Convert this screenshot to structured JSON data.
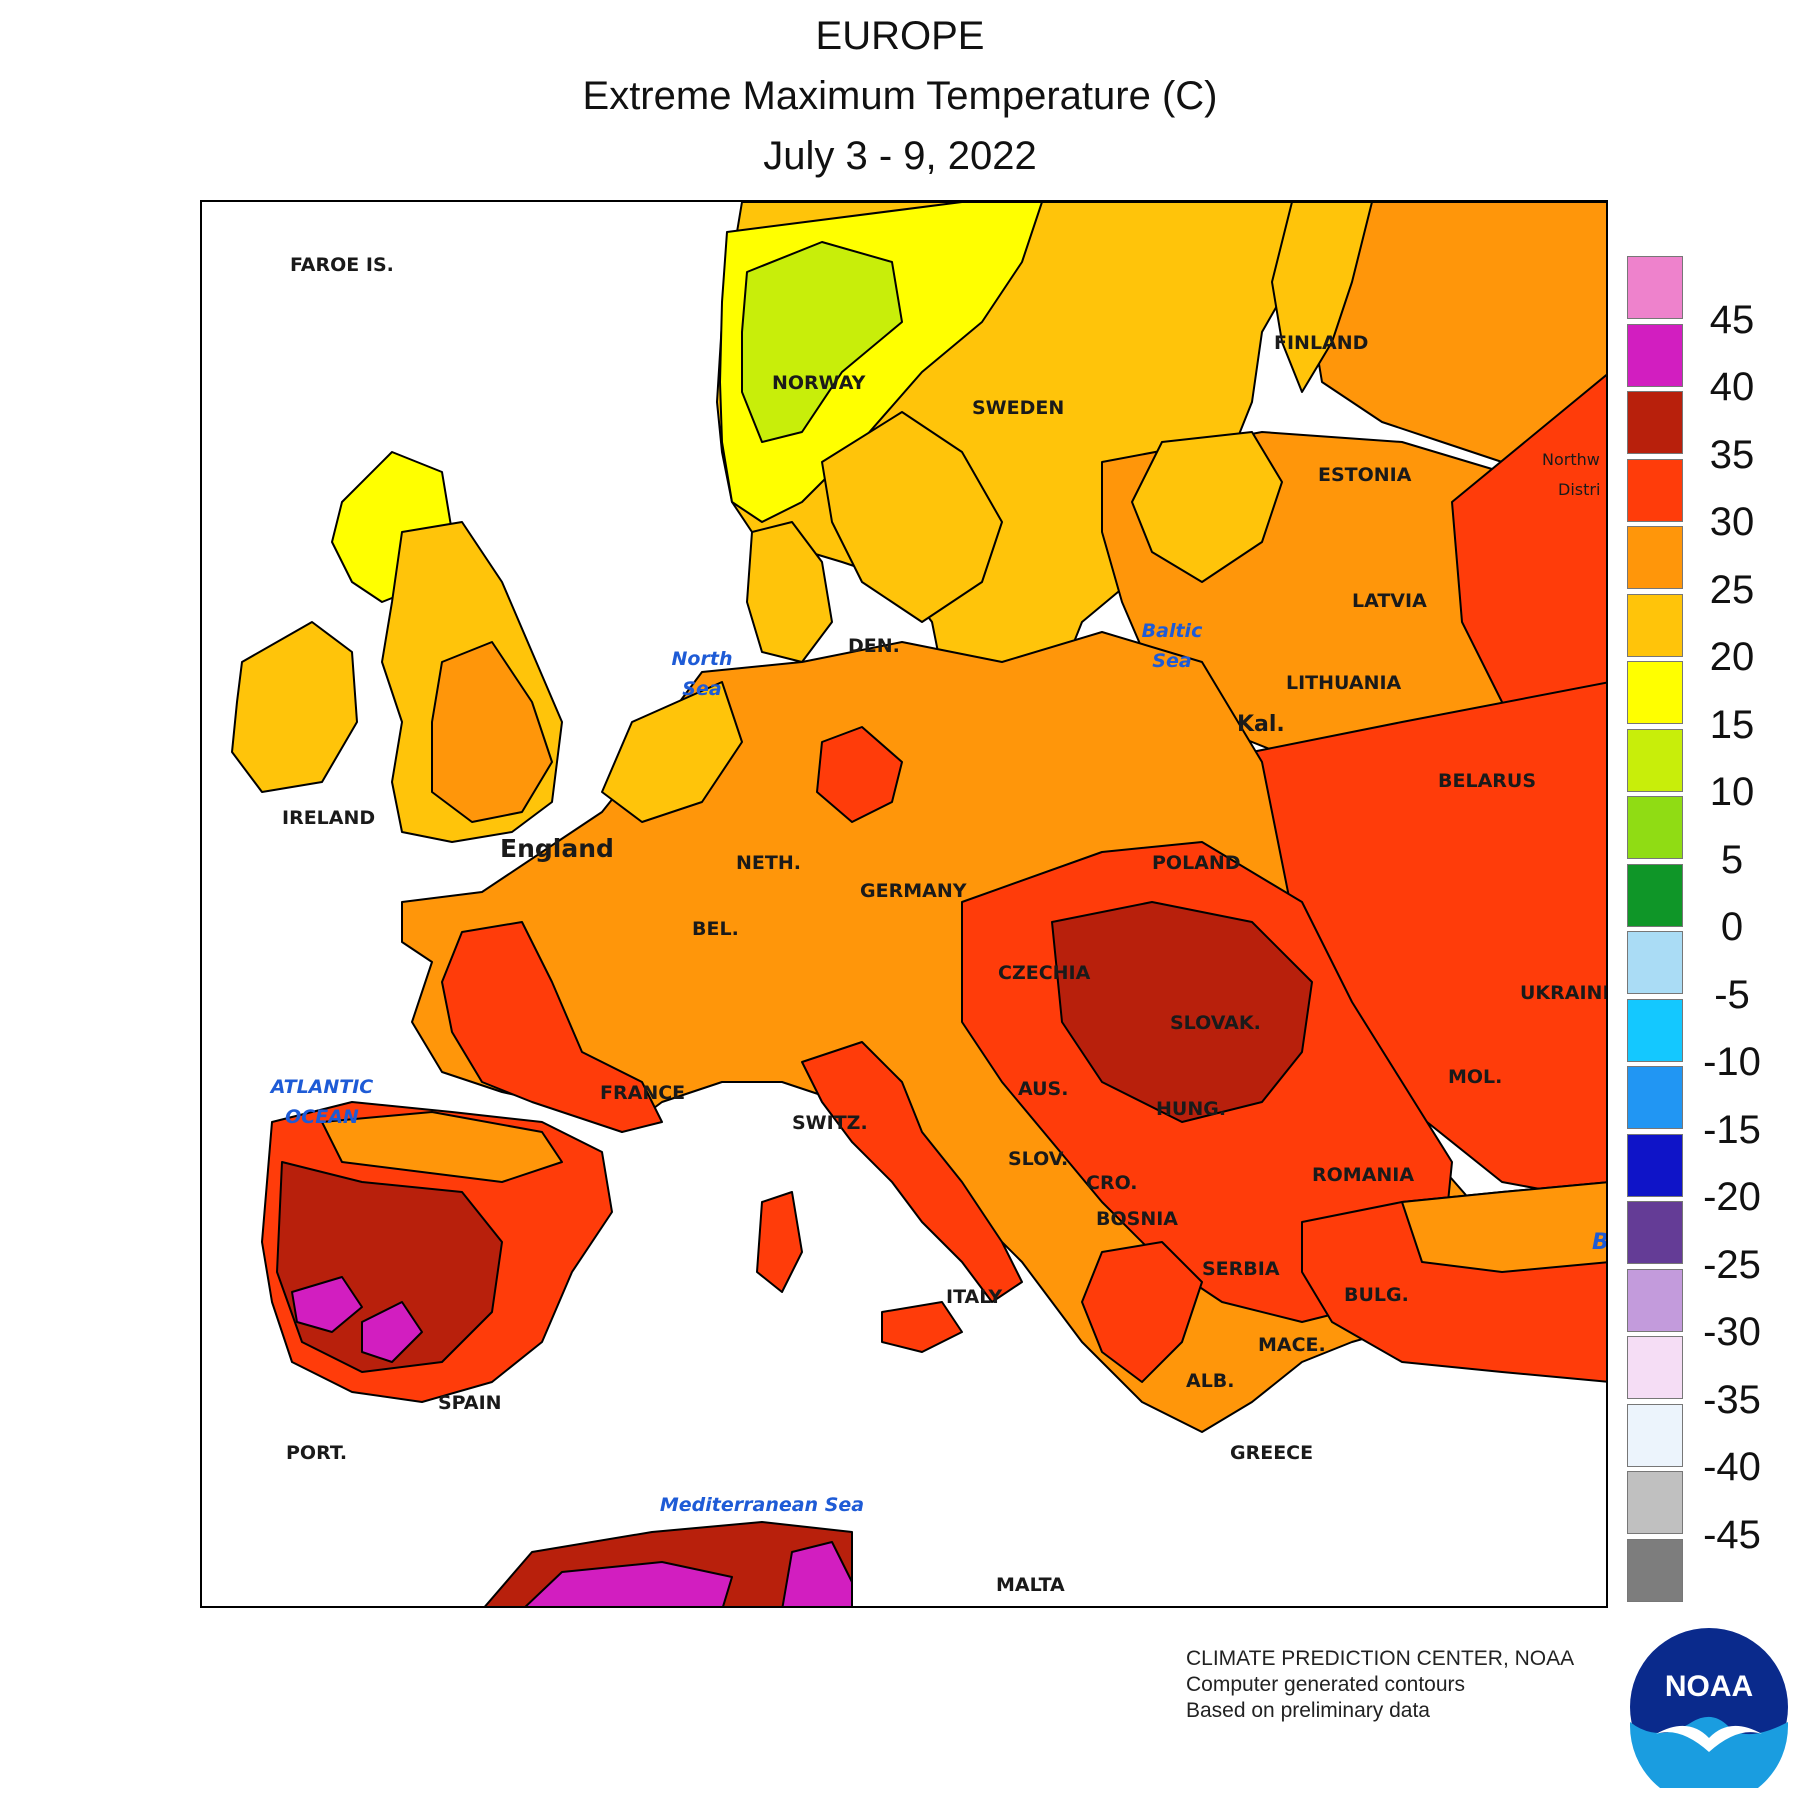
{
  "title": {
    "region": "EUROPE",
    "variable": "Extreme Maximum Temperature (C)",
    "period": "July 3 - 9, 2022"
  },
  "labels": {
    "faroe": "FAROE IS.",
    "norway": "NORWAY",
    "sweden": "SWEDEN",
    "finland": "FINLAND",
    "estonia": "ESTONIA",
    "latvia": "LATVIA",
    "lithuania": "LITHUANIA",
    "kal": "Kal.",
    "den": "DEN.",
    "ireland": "IRELAND",
    "england": "England",
    "neth": "NETH.",
    "bel": "BEL.",
    "germany": "GERMANY",
    "poland": "POLAND",
    "belarus": "BELARUS",
    "czechia": "CZECHIA",
    "slovak": "SLOVAK.",
    "ukraine": "UKRAINE",
    "france": "FRANCE",
    "switz": "SWITZ.",
    "aus": "AUS.",
    "hung": "HUNG.",
    "mol": "MOL.",
    "slov": "SLOV.",
    "cro": "CRO.",
    "romania": "ROMANIA",
    "bosnia": "BOSNIA",
    "serbia": "SERBIA",
    "bulg": "BULG.",
    "italy": "ITALY",
    "mace": "MACE.",
    "alb": "ALB.",
    "greece": "GREECE",
    "spain": "SPAIN",
    "port": "PORT.",
    "malta": "MALTA",
    "northwest_1": "Northw",
    "northwest_2": "Distri",
    "b_edge": "B"
  },
  "seas": {
    "north_sea_1": "North",
    "north_sea_2": "Sea",
    "baltic_1": "Baltic",
    "baltic_2": "Sea",
    "atlantic_1": "ATLANTIC",
    "atlantic_2": "OCEAN",
    "mediterranean": "Mediterranean Sea"
  },
  "legend": {
    "unit": "°C",
    "bins": [
      {
        "from": 45,
        "to": 50,
        "color": "#ee82cc"
      },
      {
        "from": 40,
        "to": 45,
        "color": "#d21ec0"
      },
      {
        "from": 35,
        "to": 40,
        "color": "#b8200c"
      },
      {
        "from": 30,
        "to": 35,
        "color": "#ff3c0a"
      },
      {
        "from": 25,
        "to": 30,
        "color": "#ff960a"
      },
      {
        "from": 20,
        "to": 25,
        "color": "#ffc40a"
      },
      {
        "from": 15,
        "to": 20,
        "color": "#ffff00"
      },
      {
        "from": 10,
        "to": 15,
        "color": "#c8ee0a"
      },
      {
        "from": 5,
        "to": 10,
        "color": "#90dc14"
      },
      {
        "from": 0,
        "to": 5,
        "color": "#0f9628"
      },
      {
        "from": -5,
        "to": 0,
        "color": "#aadcf5"
      },
      {
        "from": -10,
        "to": -5,
        "color": "#14c8ff"
      },
      {
        "from": -15,
        "to": -10,
        "color": "#2196f3"
      },
      {
        "from": -20,
        "to": -15,
        "color": "#0f14c8"
      },
      {
        "from": -25,
        "to": -20,
        "color": "#643c96"
      },
      {
        "from": -30,
        "to": -25,
        "color": "#c39bdc"
      },
      {
        "from": -35,
        "to": -30,
        "color": "#f5ddf5"
      },
      {
        "from": -40,
        "to": -35,
        "color": "#ecf4fc"
      },
      {
        "from": -45,
        "to": -40,
        "color": "#c0c0c0"
      },
      {
        "from": -50,
        "to": -45,
        "color": "#7d7d7d"
      }
    ],
    "ticks": [
      "45",
      "40",
      "35",
      "30",
      "25",
      "20",
      "15",
      "10",
      "5",
      "0",
      "-5",
      "-10",
      "-15",
      "-20",
      "-25",
      "-30",
      "-35",
      "-40",
      "-45"
    ]
  },
  "credit": {
    "line1": "CLIMATE PREDICTION CENTER, NOAA",
    "line2": "Computer generated contours",
    "line3": "Based on preliminary data"
  },
  "logo_text": "NOAA",
  "colors": {
    "water": "#ffffff",
    "outline": "#000000"
  }
}
